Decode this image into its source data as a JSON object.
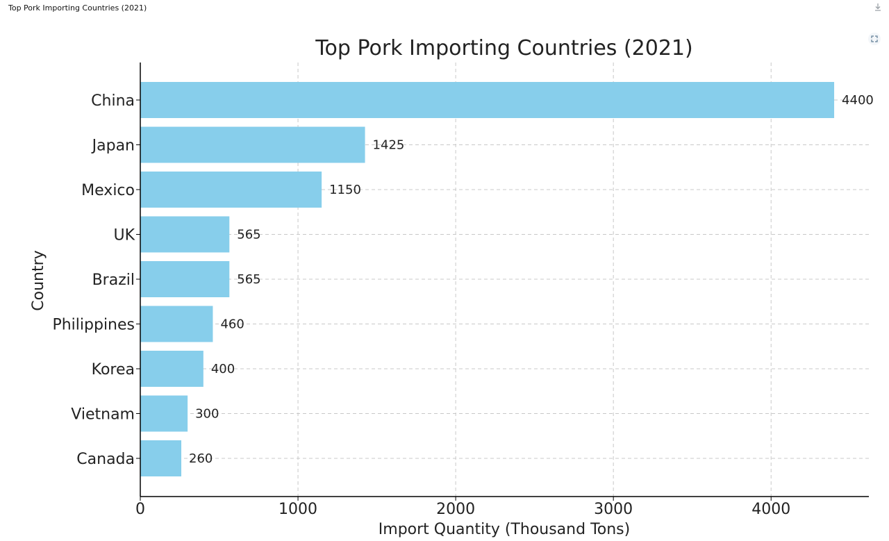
{
  "tab_title": "Top Pork Importing Countries (2021)",
  "icons": {
    "download": "download-icon",
    "expand": "expand-icon"
  },
  "colors": {
    "bar": "#87ceeb",
    "grid": "#c8c8c8",
    "axis": "#000000"
  },
  "chart_data": {
    "type": "bar",
    "orientation": "horizontal",
    "title": "Top Pork Importing Countries (2021)",
    "xlabel": "Import Quantity (Thousand Tons)",
    "ylabel": "Country",
    "categories": [
      "China",
      "Japan",
      "Mexico",
      "UK",
      "Brazil",
      "Philippines",
      "Korea",
      "Vietnam",
      "Canada"
    ],
    "values": [
      4400,
      1425,
      1150,
      565,
      565,
      460,
      400,
      300,
      260
    ],
    "xlim": [
      0,
      4620
    ],
    "xticks": [
      0,
      1000,
      2000,
      3000,
      4000
    ],
    "grid": true,
    "data_labels": true,
    "legend": false
  }
}
